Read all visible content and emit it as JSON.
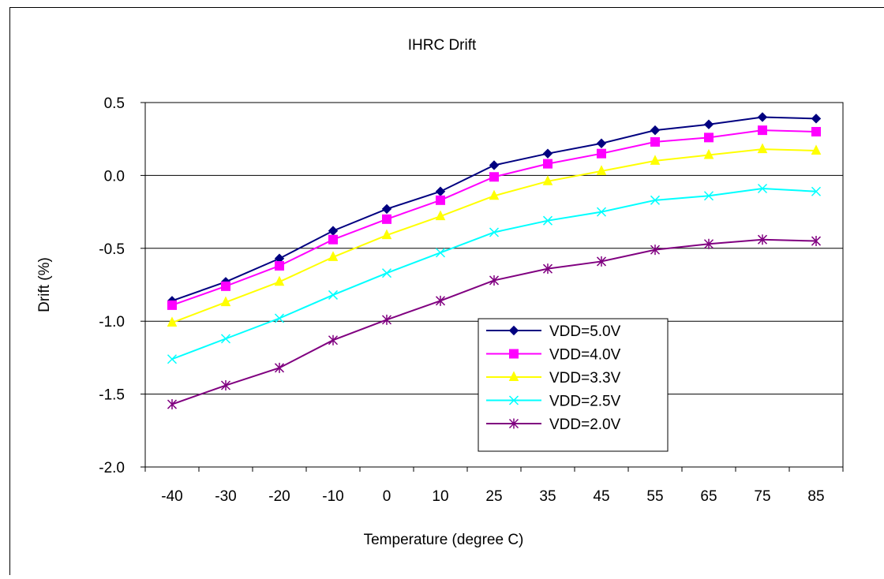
{
  "chart_data": {
    "type": "line",
    "title": "IHRC Drift",
    "xlabel": "Temperature (degree C)",
    "ylabel": "Drift (%)",
    "categories": [
      "-40",
      "-30",
      "-20",
      "-10",
      "0",
      "10",
      "25",
      "35",
      "45",
      "55",
      "65",
      "75",
      "85"
    ],
    "ylim": [
      -2.0,
      0.5
    ],
    "yticks": [
      "0.5",
      "0.0",
      "-0.5",
      "-1.0",
      "-1.5",
      "-2.0"
    ],
    "grid": true,
    "legend_position": "inside-bottom-right",
    "series": [
      {
        "name": "VDD=5.0V",
        "color": "#000080",
        "marker": "diamond",
        "values": [
          -0.86,
          -0.73,
          -0.57,
          -0.38,
          -0.23,
          -0.11,
          0.07,
          0.15,
          0.22,
          0.31,
          0.35,
          0.4,
          0.39
        ]
      },
      {
        "name": "VDD=4.0V",
        "color": "#FF00FF",
        "marker": "square",
        "values": [
          -0.89,
          -0.76,
          -0.62,
          -0.44,
          -0.3,
          -0.17,
          -0.01,
          0.08,
          0.15,
          0.23,
          0.26,
          0.31,
          0.3
        ]
      },
      {
        "name": "VDD=3.3V",
        "color": "#FFFF00",
        "marker": "triangle",
        "values": [
          -1.01,
          -0.87,
          -0.73,
          -0.56,
          -0.41,
          -0.28,
          -0.14,
          -0.04,
          0.03,
          0.1,
          0.14,
          0.18,
          0.17
        ]
      },
      {
        "name": "VDD=2.5V",
        "color": "#00FFFF",
        "marker": "x",
        "values": [
          -1.26,
          -1.12,
          -0.98,
          -0.82,
          -0.67,
          -0.53,
          -0.39,
          -0.31,
          -0.25,
          -0.17,
          -0.14,
          -0.09,
          -0.11
        ]
      },
      {
        "name": "VDD=2.0V",
        "color": "#800080",
        "marker": "star",
        "values": [
          -1.57,
          -1.44,
          -1.32,
          -1.13,
          -0.99,
          -0.86,
          -0.72,
          -0.64,
          -0.59,
          -0.51,
          -0.47,
          -0.44,
          -0.45
        ]
      }
    ]
  }
}
